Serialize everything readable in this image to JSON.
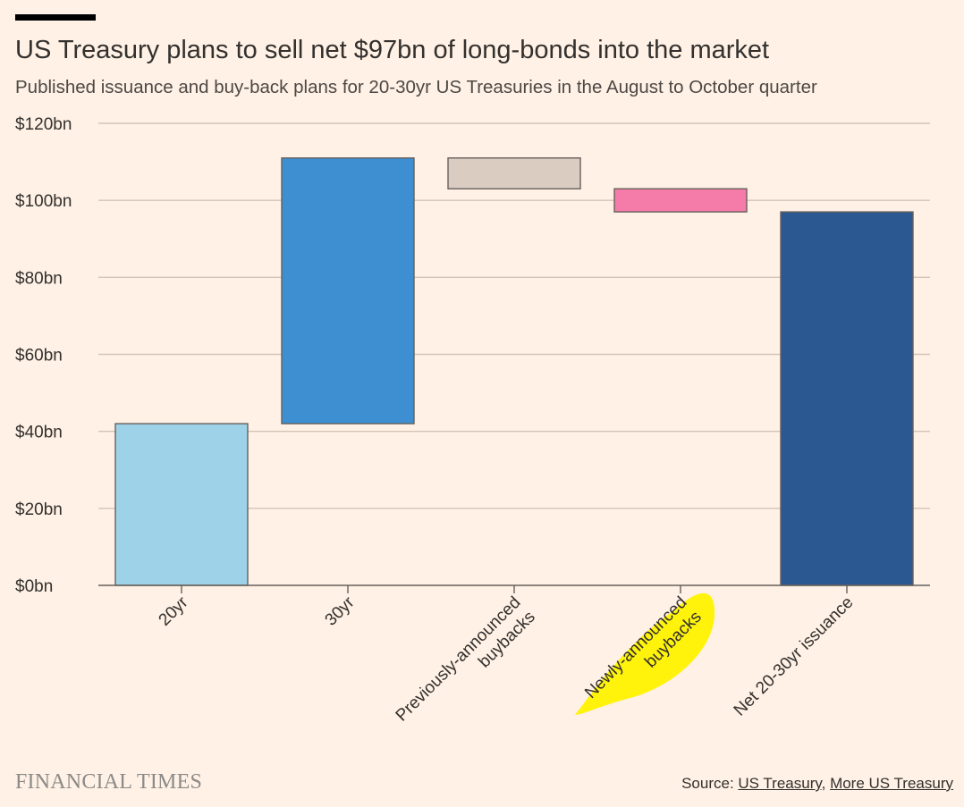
{
  "header": {
    "title": "US Treasury plans to sell net $97bn of long-bonds into the market",
    "subtitle": "Published issuance and buy-back plans for 20-30yr US Treasuries in the August to October quarter"
  },
  "footer": {
    "logo": "FINANCIAL TIMES",
    "source_prefix": "Source: ",
    "source_link_1": "US Treasury",
    "source_sep": ", ",
    "source_link_2": "More US Treasury"
  },
  "chart_data": {
    "type": "bar",
    "subtype": "waterfall",
    "title": "US Treasury plans to sell net $97bn of long-bonds into the market",
    "subtitle": "Published issuance and buy-back plans for 20-30yr US Treasuries in the August to October quarter",
    "ylim": [
      0,
      120
    ],
    "y_ticks": [
      0,
      20,
      40,
      60,
      80,
      100,
      120
    ],
    "y_tick_labels": [
      "$0bn",
      "$20bn",
      "$40bn",
      "$60bn",
      "$80bn",
      "$100bn",
      "$120bn"
    ],
    "grid": true,
    "categories": [
      [
        "20yr"
      ],
      [
        "30yr"
      ],
      [
        "Previously-announced",
        "buybacks"
      ],
      [
        "Newly-announced",
        "buybacks"
      ],
      [
        "Net 20-30yr issuance"
      ]
    ],
    "bars": [
      {
        "start": 0,
        "end": 42,
        "color": "#9dd2e8"
      },
      {
        "start": 42,
        "end": 111,
        "color": "#3d8fd1"
      },
      {
        "start": 111,
        "end": 103,
        "color": "#dbccc2"
      },
      {
        "start": 103,
        "end": 97,
        "color": "#f57ba8"
      },
      {
        "start": 0,
        "end": 97,
        "color": "#2b5890"
      }
    ],
    "highlight_index": 3,
    "highlight_color": "#fff200"
  }
}
